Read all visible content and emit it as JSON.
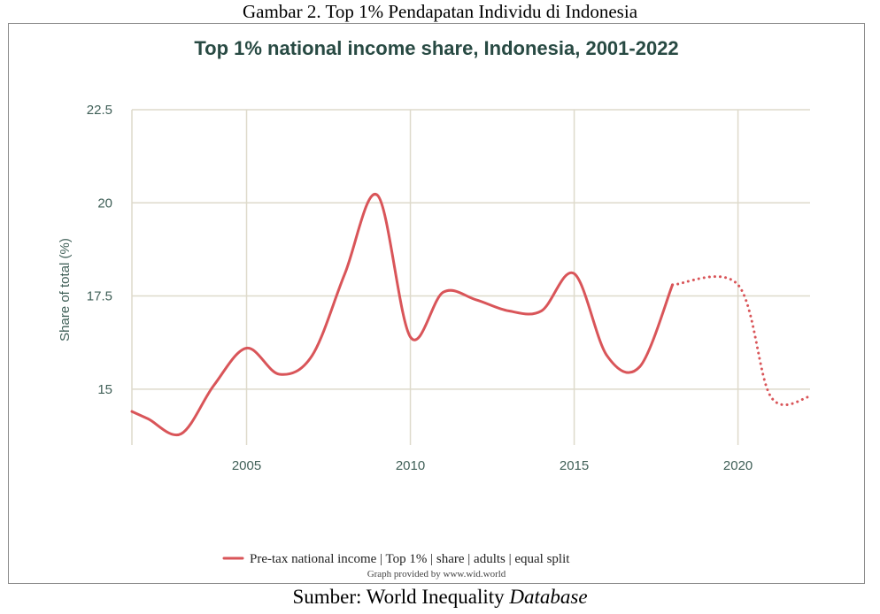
{
  "figure": {
    "caption": "Gambar 2. Top 1% Pendapatan Individu di Indonesia",
    "source_prefix": "Sumber: World Inequality ",
    "source_emph": "Database"
  },
  "credit": "Graph provided by www.wid.world",
  "colors": {
    "line": "#d95559",
    "grid": "#dedacb",
    "title": "#284a43",
    "axis_text": "#3f5f57"
  },
  "chart_data": {
    "type": "line",
    "title": "Top 1% national income share, Indonesia, 2001-2022",
    "xlabel": "",
    "ylabel": "Share of total (%)",
    "xlim": [
      2001.5,
      2022.2
    ],
    "ylim": [
      13.5,
      22.5
    ],
    "xticks": [
      2005,
      2010,
      2015,
      2020
    ],
    "yticks": [
      15,
      17.5,
      20,
      22.5
    ],
    "ytick_labels": [
      "15",
      "17.5",
      "20",
      "22.5"
    ],
    "grid": true,
    "legend_position": "bottom-center",
    "series": [
      {
        "name": "Pre-tax national income | Top 1% | share | adults | equal split",
        "x": [
          2001.5,
          2002,
          2003,
          2004,
          2005,
          2006,
          2007,
          2008,
          2009,
          2010,
          2011,
          2012,
          2013,
          2014,
          2015,
          2016,
          2017,
          2018
        ],
        "y": [
          14.4,
          14.2,
          13.8,
          15.1,
          16.1,
          15.4,
          15.9,
          18.1,
          20.2,
          16.4,
          17.6,
          17.4,
          17.1,
          17.1,
          18.1,
          15.9,
          15.6,
          17.8
        ],
        "style": "solid"
      },
      {
        "name": "",
        "x": [
          2018,
          2020,
          2021,
          2022.2
        ],
        "y": [
          17.8,
          17.8,
          14.8,
          14.8
        ],
        "style": "dotted"
      }
    ]
  }
}
